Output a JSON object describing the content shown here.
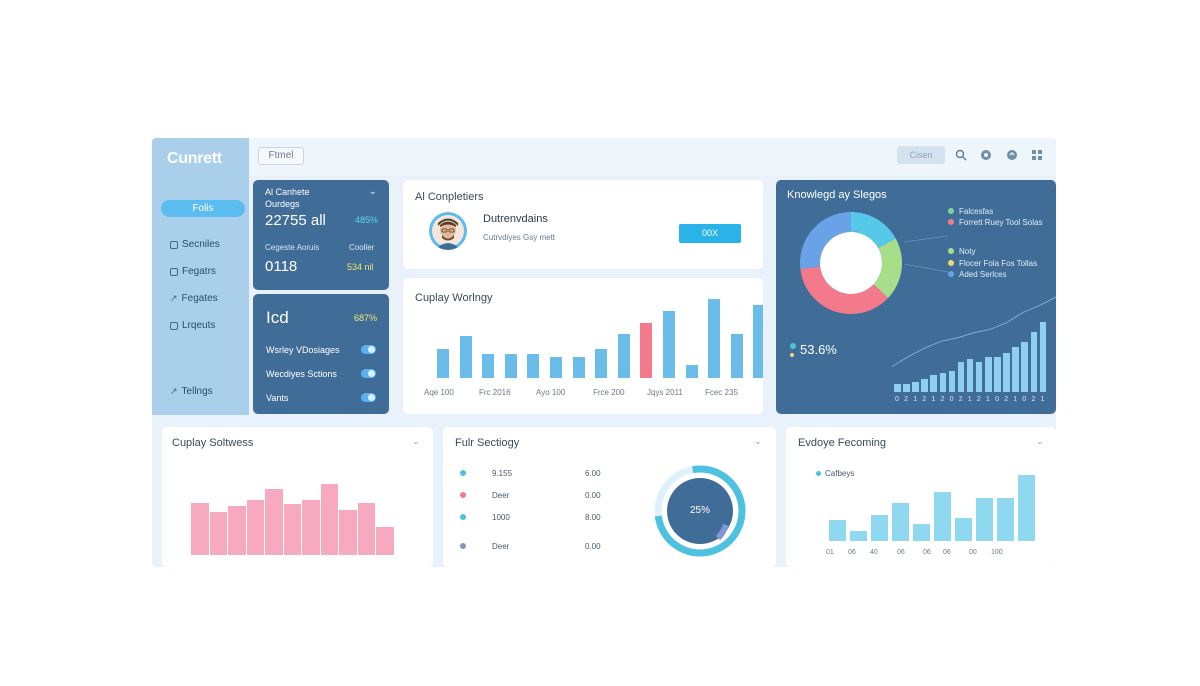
{
  "sidebar": {
    "logo": "Cunrett",
    "active_item": "Folis",
    "items": [
      "Secniles",
      "Fegatrs",
      "Fegates",
      "Lrqeuts"
    ],
    "settings": "Tellngs"
  },
  "topbar": {
    "filter_label": "Ftmel",
    "button_label": "Cisen",
    "icons": [
      "search-icon",
      "bell-icon",
      "refresh-icon",
      "grid-icon"
    ]
  },
  "card_stats": {
    "title_line1": "Al Canhete",
    "title_line2": "Ourdegs",
    "value1": "22755 all",
    "value1_change": "485%",
    "label_a": "Cegeste Aoruis",
    "label_b": "Cooller",
    "value2": "0118",
    "value2_badge": "534 nil"
  },
  "card_toggles": {
    "title": "Icd",
    "badge": "687%",
    "items": [
      "Wsrley VDosiages",
      "Wecdiyes Sctions",
      "Vants"
    ]
  },
  "card_profile": {
    "title": "Al Conpletiers",
    "name": "Dutrenvdains",
    "subtitle": "Cutrvdiyes Gsy mett",
    "button": "00X"
  },
  "chart_main": {
    "title": "Cuplay Worlngy",
    "xlabels": [
      "Aqe 100",
      "Frc 2016",
      "Ayo 100",
      "Frce 200",
      "Jqys 2011",
      "Fcec 235"
    ]
  },
  "knowledge": {
    "title": "Knowlegd ay Slegos",
    "legend": [
      {
        "label": "Falcesfas",
        "color": "#7ed3a1"
      },
      {
        "label": "Forrett Ruey Tool Solas",
        "color": "#f27a8a"
      },
      {
        "label": "Noty",
        "color": "#a8dd8a"
      },
      {
        "label": "Flocer Fola Fos Tollas",
        "color": "#f3d777"
      },
      {
        "label": "Aded Serlces",
        "color": "#6aa2e8"
      }
    ],
    "big_value": "53.6%"
  },
  "card_bottom_left": {
    "title": "Cuplay Soltwess"
  },
  "card_bottom_mid": {
    "title": "Fulr Sectiogy",
    "rows": [
      {
        "label": "9.155",
        "value": "6.00",
        "color": "#4ec0e0"
      },
      {
        "label": "Deer",
        "value": "0.00",
        "color": "#f27a8a"
      },
      {
        "label": "1000",
        "value": "8.00",
        "color": "#4ec0e0"
      },
      {
        "label": "Deer",
        "value": "0.00",
        "color": "#8a94b8"
      }
    ],
    "gauge_value": "25%"
  },
  "card_bottom_right": {
    "title": "Evdoye Fecoming",
    "legend": "Cafbeys",
    "xlabels": [
      "01",
      "06",
      "40",
      "06",
      "06",
      "06",
      "00",
      "100"
    ]
  },
  "chart_data": [
    {
      "type": "bar",
      "name_ref": "chart_main",
      "values": [
        29,
        42,
        24,
        24,
        24,
        21,
        21,
        29,
        44,
        55,
        67,
        13,
        79,
        44,
        73
      ],
      "highlight_index": 9,
      "ylim": [
        0,
        100
      ]
    },
    {
      "type": "pie",
      "name_ref": "knowledge",
      "slices": [
        {
          "value": 17,
          "color": "#56c8e8"
        },
        {
          "value": 20,
          "color": "#a8dd8a"
        },
        {
          "value": 36,
          "color": "#f27a8a"
        },
        {
          "value": 27,
          "color": "#6aa2e8"
        }
      ]
    },
    {
      "type": "bar",
      "name_ref": "knowledge",
      "values": [
        8,
        8,
        10,
        13,
        17,
        19,
        21,
        30,
        33,
        30,
        35,
        35,
        39,
        45,
        50,
        60,
        70
      ],
      "line_values": [
        18,
        30,
        40,
        48,
        52,
        58,
        62,
        70,
        82,
        90,
        100
      ],
      "xlabels": [
        "0",
        "2",
        "1",
        "2",
        "1",
        "2",
        "0",
        "2",
        "1",
        "2",
        "1",
        "0",
        "2",
        "1",
        "0",
        "2",
        "1"
      ]
    },
    {
      "type": "bar",
      "name_ref": "card_bottom_left",
      "values": [
        52,
        43,
        49,
        55,
        66,
        51,
        55,
        71,
        45,
        52,
        28
      ],
      "ylim": [
        0,
        80
      ]
    },
    {
      "type": "bar",
      "name_ref": "card_bottom_right",
      "values": [
        21,
        10,
        26,
        38,
        17,
        49,
        23,
        43,
        43,
        66
      ],
      "ylim": [
        0,
        80
      ]
    }
  ]
}
